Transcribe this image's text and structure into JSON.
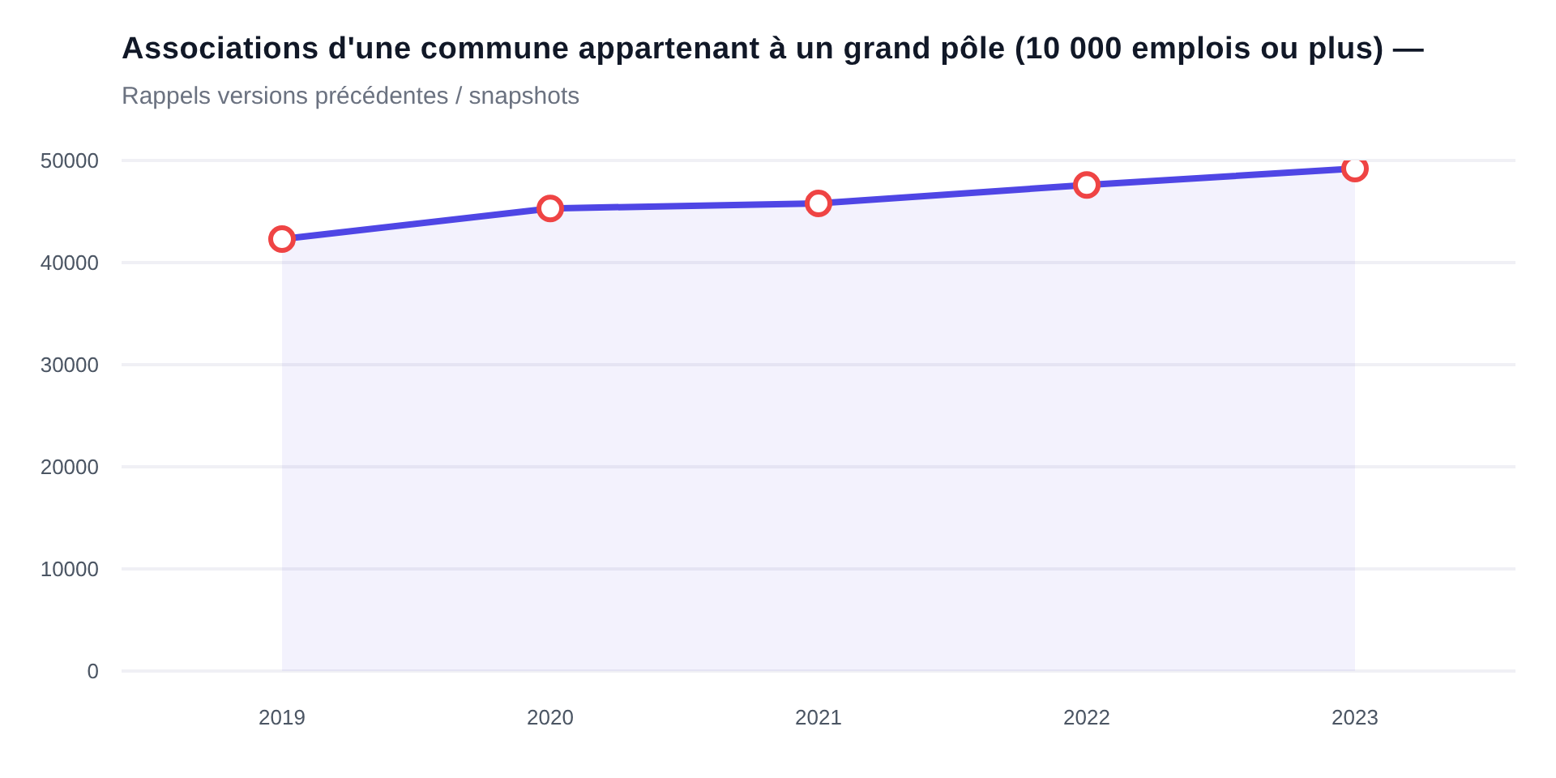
{
  "chart_data": {
    "type": "area",
    "title": "Associations d'une commune appartenant à un grand pôle (10 000 emplois ou plus) —",
    "subtitle": "Rappels versions précédentes / snapshots",
    "categories": [
      "2019",
      "2020",
      "2021",
      "2022",
      "2023"
    ],
    "series": [
      {
        "color": "#4f46e5",
        "values": [
          42300,
          45300,
          45800,
          47600,
          49200
        ]
      }
    ],
    "ylim": [
      0,
      50000
    ],
    "yticks": [
      0,
      10000,
      20000,
      30000,
      40000,
      50000
    ],
    "grid": "y",
    "marker": "circle",
    "legend": false
  }
}
